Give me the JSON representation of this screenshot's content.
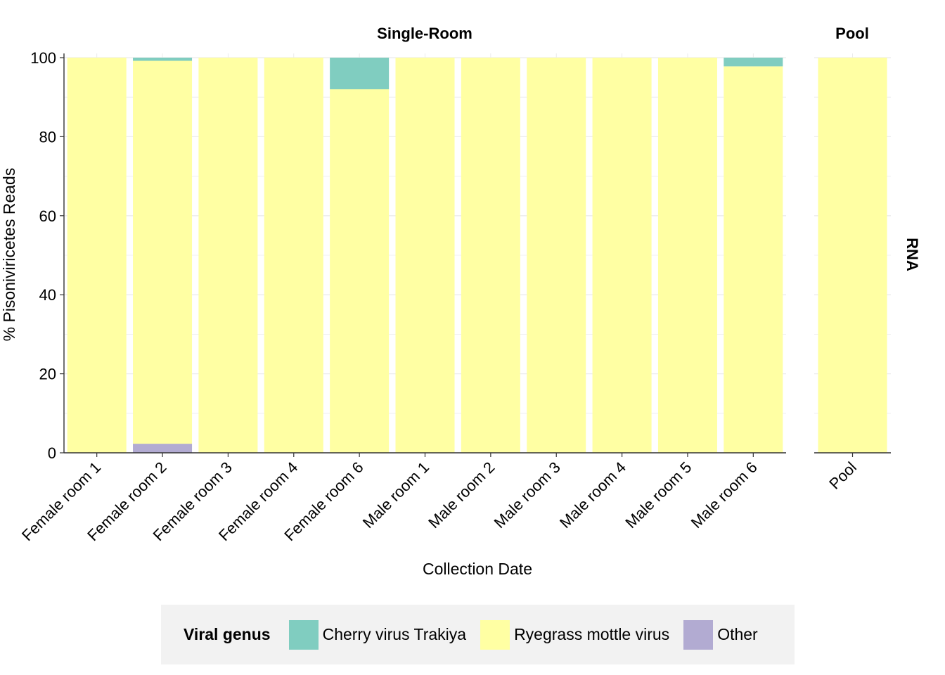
{
  "chart_data": {
    "type": "bar",
    "stacked": true,
    "ylabel": "% Pisoniviricetes Reads",
    "xlabel": "Collection Date",
    "ylim": [
      0,
      100
    ],
    "yticks": [
      "0",
      "20",
      "40",
      "60",
      "80",
      "100"
    ],
    "row_strip": "RNA",
    "panels": [
      {
        "title": "Single-Room",
        "categories": [
          "Female room 1",
          "Female room 2",
          "Female room 3",
          "Female room 4",
          "Female room 6",
          "Male room 1",
          "Male room 2",
          "Male room 3",
          "Male room 4",
          "Male room 5",
          "Male room 6"
        ],
        "series": [
          {
            "name": "Other",
            "values": [
              0,
              2.3,
              0,
              0,
              0,
              0,
              0,
              0,
              0,
              0,
              0
            ]
          },
          {
            "name": "Ryegrass mottle virus",
            "values": [
              100,
              96.9,
              100,
              100,
              92,
              100,
              100,
              100,
              100,
              100,
              97.8
            ]
          },
          {
            "name": "Cherry virus Trakiya",
            "values": [
              0,
              0.8,
              0,
              0,
              8,
              0,
              0,
              0,
              0,
              0,
              2.2
            ]
          }
        ]
      },
      {
        "title": "Pool",
        "categories": [
          "Pool"
        ],
        "series": [
          {
            "name": "Other",
            "values": [
              0
            ]
          },
          {
            "name": "Ryegrass mottle virus",
            "values": [
              100
            ]
          },
          {
            "name": "Cherry virus Trakiya",
            "values": [
              0
            ]
          }
        ]
      }
    ],
    "legend": {
      "title": "Viral genus",
      "position": "bottom",
      "entries": [
        {
          "label": "Cherry virus Trakiya",
          "color": "#80cdc0"
        },
        {
          "label": "Ryegrass mottle virus",
          "color": "#ffffa3"
        },
        {
          "label": "Other",
          "color": "#b2abd2"
        }
      ]
    },
    "colors": {
      "Cherry virus Trakiya": "#80cdc0",
      "Ryegrass mottle virus": "#ffffa3",
      "Other": "#b2abd2"
    },
    "grid": true
  }
}
